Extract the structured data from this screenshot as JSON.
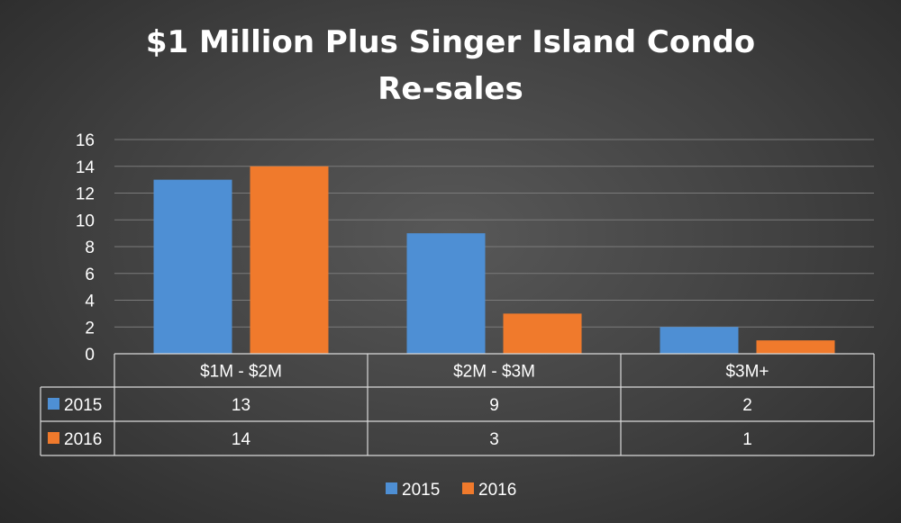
{
  "chart_data": {
    "type": "bar",
    "title": "$1 Million Plus Singer Island Condo Re-sales",
    "title_lines": [
      "$1 Million Plus Singer Island Condo",
      "Re-sales"
    ],
    "categories": [
      "$1M - $2M",
      "$2M - $3M",
      "$3M+"
    ],
    "series": [
      {
        "name": "2015",
        "values": [
          13,
          9,
          2
        ],
        "color": "#4e8fd4"
      },
      {
        "name": "2016",
        "values": [
          14,
          3,
          1
        ],
        "color": "#f07a2c"
      }
    ],
    "ylim": [
      0,
      16
    ],
    "yticks": [
      "0",
      "2",
      "4",
      "6",
      "8",
      "10",
      "12",
      "14",
      "16"
    ],
    "grid": true,
    "data_table": true,
    "legend_position": "bottom"
  }
}
